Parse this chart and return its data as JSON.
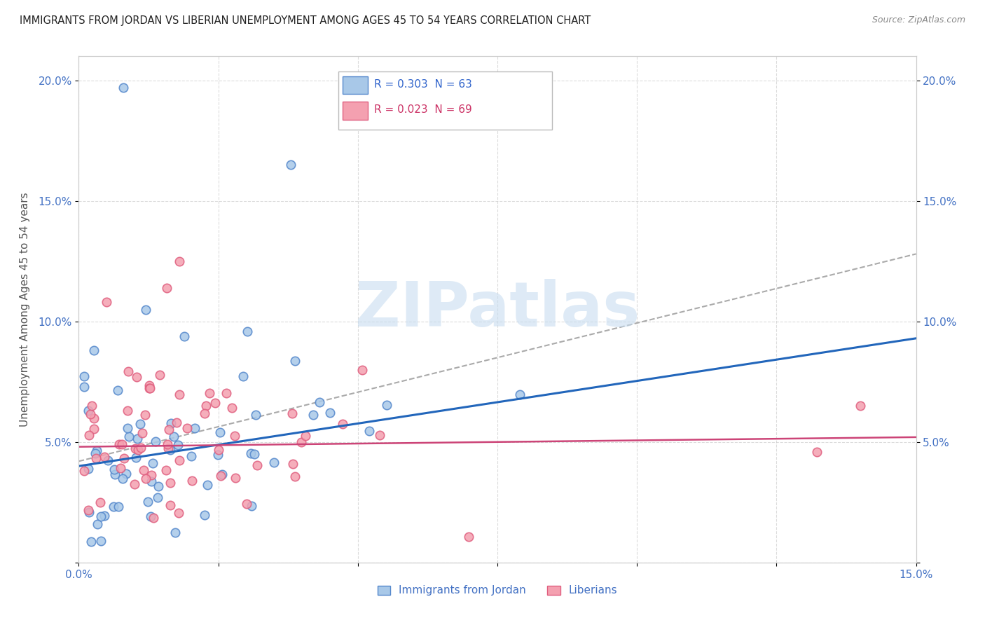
{
  "title": "IMMIGRANTS FROM JORDAN VS LIBERIAN UNEMPLOYMENT AMONG AGES 45 TO 54 YEARS CORRELATION CHART",
  "source": "Source: ZipAtlas.com",
  "ylabel": "Unemployment Among Ages 45 to 54 years",
  "xlim": [
    0.0,
    0.15
  ],
  "ylim": [
    0.0,
    0.21
  ],
  "xtick_positions": [
    0.0,
    0.025,
    0.05,
    0.075,
    0.1,
    0.125,
    0.15
  ],
  "xtick_labels": [
    "0.0%",
    "",
    "",
    "",
    "",
    "",
    "15.0%"
  ],
  "ytick_positions": [
    0.0,
    0.05,
    0.1,
    0.15,
    0.2
  ],
  "ytick_labels": [
    "",
    "5.0%",
    "10.0%",
    "15.0%",
    "20.0%"
  ],
  "legend_r1": "R = 0.303",
  "legend_n1": "N = 63",
  "legend_r2": "R = 0.023",
  "legend_n2": "N = 69",
  "color_jordan": "#a8c8e8",
  "color_liberian": "#f4a0b0",
  "color_jordan_edge": "#5588cc",
  "color_liberian_edge": "#e06080",
  "color_jordan_line": "#2266bb",
  "color_liberian_line": "#cc4477",
  "color_dashed_line": "#aaaaaa",
  "color_legend_jordan_text": "#3366cc",
  "color_legend_liberian_text": "#cc3366",
  "watermark_text": "ZIPatlas",
  "watermark_color": "#c8ddf0",
  "background_color": "#ffffff",
  "grid_color": "#cccccc",
  "tick_color": "#4472c4",
  "title_color": "#222222",
  "source_color": "#888888",
  "ylabel_color": "#555555"
}
